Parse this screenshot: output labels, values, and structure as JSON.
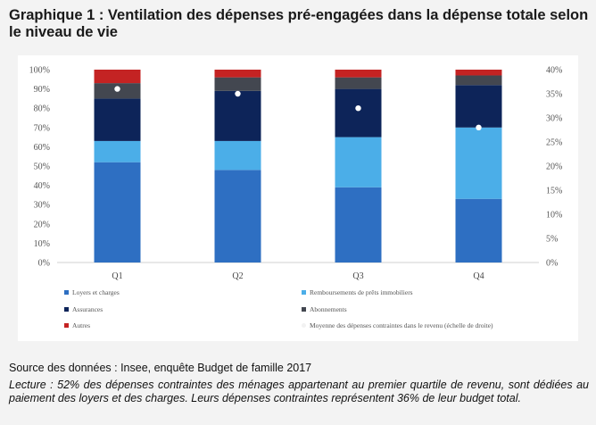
{
  "header": {
    "title": "Graphique 1 : Ventilation des dépenses pré-engagées dans la dépense totale selon le niveau de vie"
  },
  "footer": {
    "source": "Source des données : Insee, enquête Budget de famille 2017",
    "reading": "Lecture : 52% des dépenses contraintes des ménages appartenant au premier quartile de revenu, sont dédiées au paiement des loyers et des charges. Leurs dépenses contraintes représentent 36% de leur budget total."
  },
  "chart_data": {
    "type": "bar",
    "stacked": true,
    "categories": [
      "Q1",
      "Q2",
      "Q3",
      "Q4"
    ],
    "series": [
      {
        "name": "Loyers et charges",
        "color": "#2e6fc2",
        "values": [
          52,
          48,
          39,
          33
        ]
      },
      {
        "name": "Remboursements de prêts immobiliers",
        "color": "#4baee8",
        "values": [
          11,
          15,
          26,
          37
        ]
      },
      {
        "name": "Assurances",
        "color": "#0d2459",
        "values": [
          22,
          26,
          25,
          22
        ]
      },
      {
        "name": "Abonnements",
        "color": "#434750",
        "values": [
          8,
          7,
          6,
          5
        ]
      },
      {
        "name": "Autres",
        "color": "#c42323",
        "values": [
          7,
          4,
          4,
          3
        ]
      }
    ],
    "overlay": {
      "name": "Moyenne des dépenses contraintes dans le revenu (échelle de droite)",
      "type": "scatter",
      "axis": "right",
      "values": [
        36,
        35,
        32,
        28
      ]
    },
    "y_left": {
      "ylim": [
        0,
        100
      ],
      "ticks": [
        "0%",
        "10%",
        "20%",
        "30%",
        "40%",
        "50%",
        "60%",
        "70%",
        "80%",
        "90%",
        "100%"
      ]
    },
    "y_right": {
      "ylim": [
        0,
        40
      ],
      "ticks": [
        "0%",
        "5%",
        "10%",
        "15%",
        "20%",
        "25%",
        "30%",
        "35%",
        "40%"
      ]
    },
    "grid": false,
    "legend_position": "bottom"
  }
}
